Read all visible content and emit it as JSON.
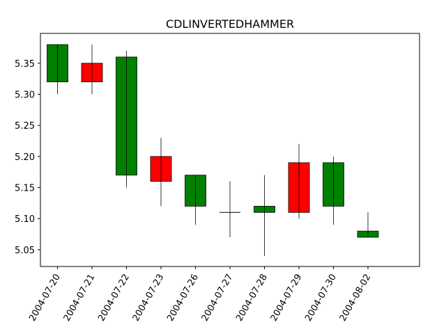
{
  "chart_data": {
    "type": "candlestick",
    "title": "CDLINVERTEDHAMMER",
    "xlabel": "",
    "ylabel": "",
    "ylim": [
      5.023,
      5.398
    ],
    "yticks": [
      "5.05",
      "5.10",
      "5.15",
      "5.20",
      "5.25",
      "5.30",
      "5.35"
    ],
    "x_tick_rotation": 60,
    "grid": false,
    "colors": {
      "up": "#008000",
      "down": "#ff0000",
      "edge": "#000000"
    },
    "candles": [
      {
        "date": "2004-07-20",
        "open": 5.32,
        "high": 5.38,
        "low": 5.3,
        "close": 5.38
      },
      {
        "date": "2004-07-21",
        "open": 5.35,
        "high": 5.38,
        "low": 5.3,
        "close": 5.32
      },
      {
        "date": "2004-07-22",
        "open": 5.17,
        "high": 5.37,
        "low": 5.15,
        "close": 5.36
      },
      {
        "date": "2004-07-23",
        "open": 5.2,
        "high": 5.23,
        "low": 5.12,
        "close": 5.16
      },
      {
        "date": "2004-07-26",
        "open": 5.12,
        "high": 5.17,
        "low": 5.09,
        "close": 5.17
      },
      {
        "date": "2004-07-27",
        "open": 5.11,
        "high": 5.16,
        "low": 5.07,
        "close": 5.11
      },
      {
        "date": "2004-07-28",
        "open": 5.11,
        "high": 5.17,
        "low": 5.04,
        "close": 5.12
      },
      {
        "date": "2004-07-29",
        "open": 5.19,
        "high": 5.22,
        "low": 5.1,
        "close": 5.11
      },
      {
        "date": "2004-07-30",
        "open": 5.12,
        "high": 5.2,
        "low": 5.09,
        "close": 5.19
      },
      {
        "date": "2004-08-02",
        "open": 5.07,
        "high": 5.11,
        "low": 5.07,
        "close": 5.08
      }
    ]
  }
}
